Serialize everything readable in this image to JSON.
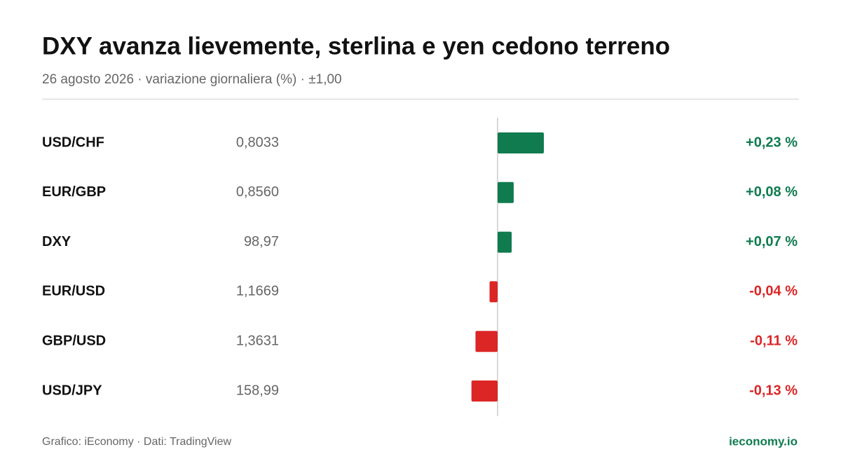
{
  "chart_data": {
    "type": "diverging-bar",
    "title": "DXY avanza lievemente, sterlina e yen cedono terreno",
    "subtitle": "26 agosto 2026 · variazione giornaliera (%) · ±1,00",
    "categories": [
      "USD/CHF",
      "EUR/GBP",
      "DXY",
      "EUR/USD",
      "GBP/USD",
      "USD/JPY"
    ],
    "prices": [
      "0,8033",
      "0,8560",
      "98,97",
      "1,1669",
      "1,3631",
      "158,99"
    ],
    "values": [
      0.23,
      0.08,
      0.07,
      -0.04,
      -0.11,
      -0.13
    ],
    "value_labels": [
      "+0,23 %",
      "+0,08 %",
      "+0,07 %",
      "-0,04 %",
      "-0,11 %",
      "-0,13 %"
    ],
    "xlim": [
      -1,
      1
    ],
    "positive_color": "#0f7b4f",
    "negative_color": "#dc2626",
    "source": "Grafico: iEconomy · Dati: TradingView",
    "brand": "ieconomy.io"
  }
}
